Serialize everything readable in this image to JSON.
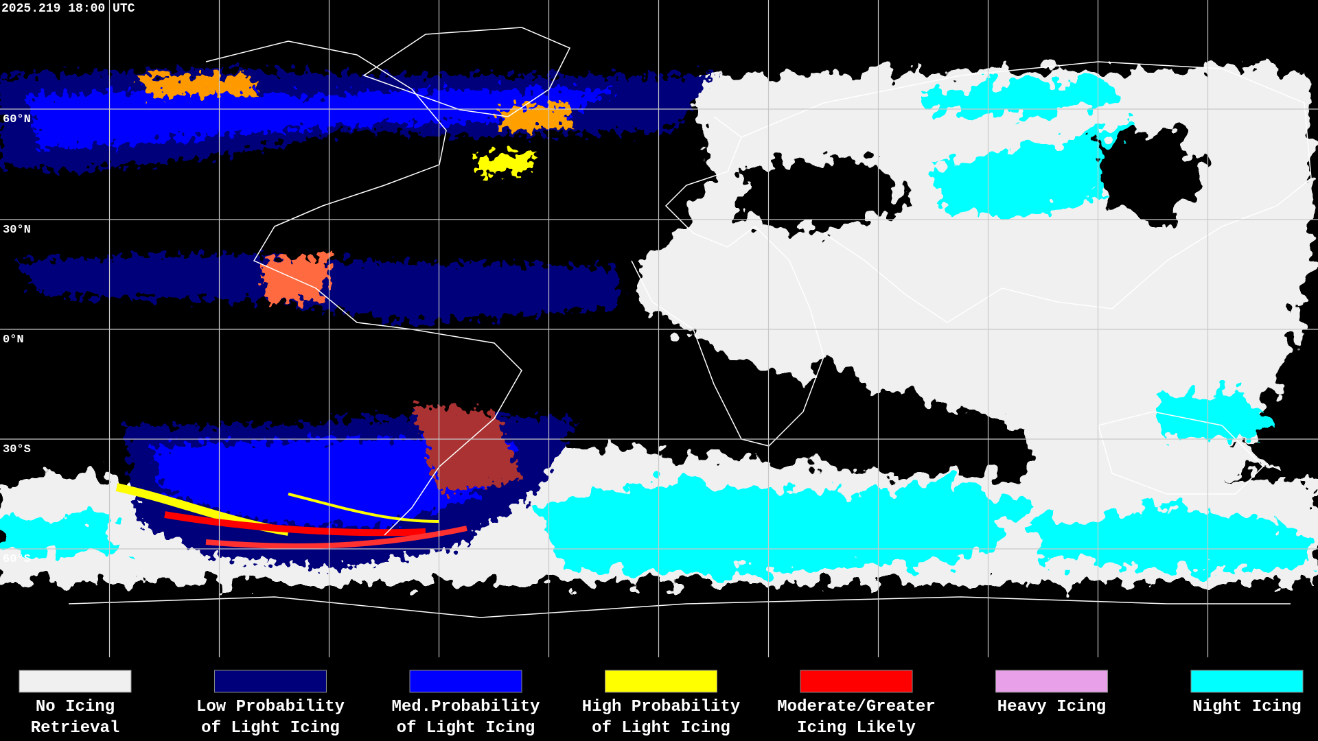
{
  "timestamp": "2025.219 18:00 UTC",
  "latitude_labels": [
    "60°N",
    "30°N",
    "0°N",
    "30°S",
    "60°S"
  ],
  "legend": [
    {
      "label_lines": [
        "No Icing",
        "Retrieval"
      ],
      "color": "#f0f0f0"
    },
    {
      "label_lines": [
        "Low Probability",
        "of Light Icing"
      ],
      "color": "#00007a"
    },
    {
      "label_lines": [
        "Med.Probability",
        "of Light Icing"
      ],
      "color": "#0000ff"
    },
    {
      "label_lines": [
        "High Probability",
        "of Light Icing"
      ],
      "color": "#ffff00"
    },
    {
      "label_lines": [
        "Moderate/Greater",
        "Icing Likely"
      ],
      "color": "#ff0000"
    },
    {
      "label_lines": [
        "Heavy Icing"
      ],
      "color": "#e8a0e8"
    },
    {
      "label_lines": [
        "Night Icing"
      ],
      "color": "#00ffff"
    }
  ]
}
